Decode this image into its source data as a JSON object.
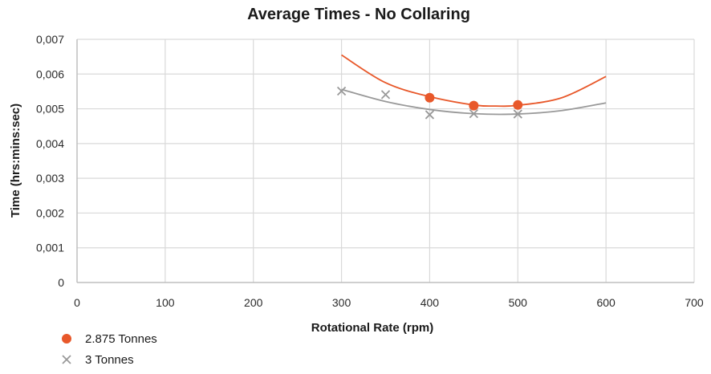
{
  "chart_data": {
    "type": "scatter",
    "title": "Average Times - No Collaring",
    "xlabel": "Rotational Rate (rpm)",
    "ylabel": "Time (hrs:mins:sec)",
    "xlim": [
      0,
      700
    ],
    "ylim": [
      0,
      0.007
    ],
    "x_ticks": [
      0,
      100,
      200,
      300,
      400,
      500,
      600,
      700
    ],
    "x_tick_labels": [
      "0",
      "100",
      "200",
      "300",
      "400",
      "500",
      "600",
      "700"
    ],
    "y_ticks": [
      0,
      0.001,
      0.002,
      0.003,
      0.004,
      0.005,
      0.006,
      0.007
    ],
    "y_tick_labels": [
      "0",
      "0,001",
      "0,002",
      "0,003",
      "0,004",
      "0,005",
      "0,006",
      "0,007"
    ],
    "grid": true,
    "legend_position": "bottom-left",
    "series": [
      {
        "name": "2.875 Tonnes",
        "marker": "circle",
        "color": "#E8582A",
        "x": [
          400,
          450,
          500
        ],
        "y": [
          0.00532,
          0.00509,
          0.00511
        ],
        "trendline": {
          "type": "polynomial",
          "x": [
            300,
            350,
            400,
            450,
            475,
            500,
            550,
            600
          ],
          "y": [
            0.00655,
            0.00575,
            0.00535,
            0.00511,
            0.00508,
            0.0051,
            0.00532,
            0.00593
          ]
        }
      },
      {
        "name": "3 Tonnes",
        "marker": "x",
        "color": "#999999",
        "x": [
          300,
          350,
          400,
          450,
          500
        ],
        "y": [
          0.00551,
          0.00541,
          0.00483,
          0.00486,
          0.00485
        ],
        "trendline": {
          "type": "polynomial",
          "x": [
            300,
            350,
            400,
            450,
            500,
            550,
            600
          ],
          "y": [
            0.00556,
            0.00521,
            0.00498,
            0.00486,
            0.00485,
            0.00495,
            0.00517
          ]
        }
      }
    ]
  }
}
